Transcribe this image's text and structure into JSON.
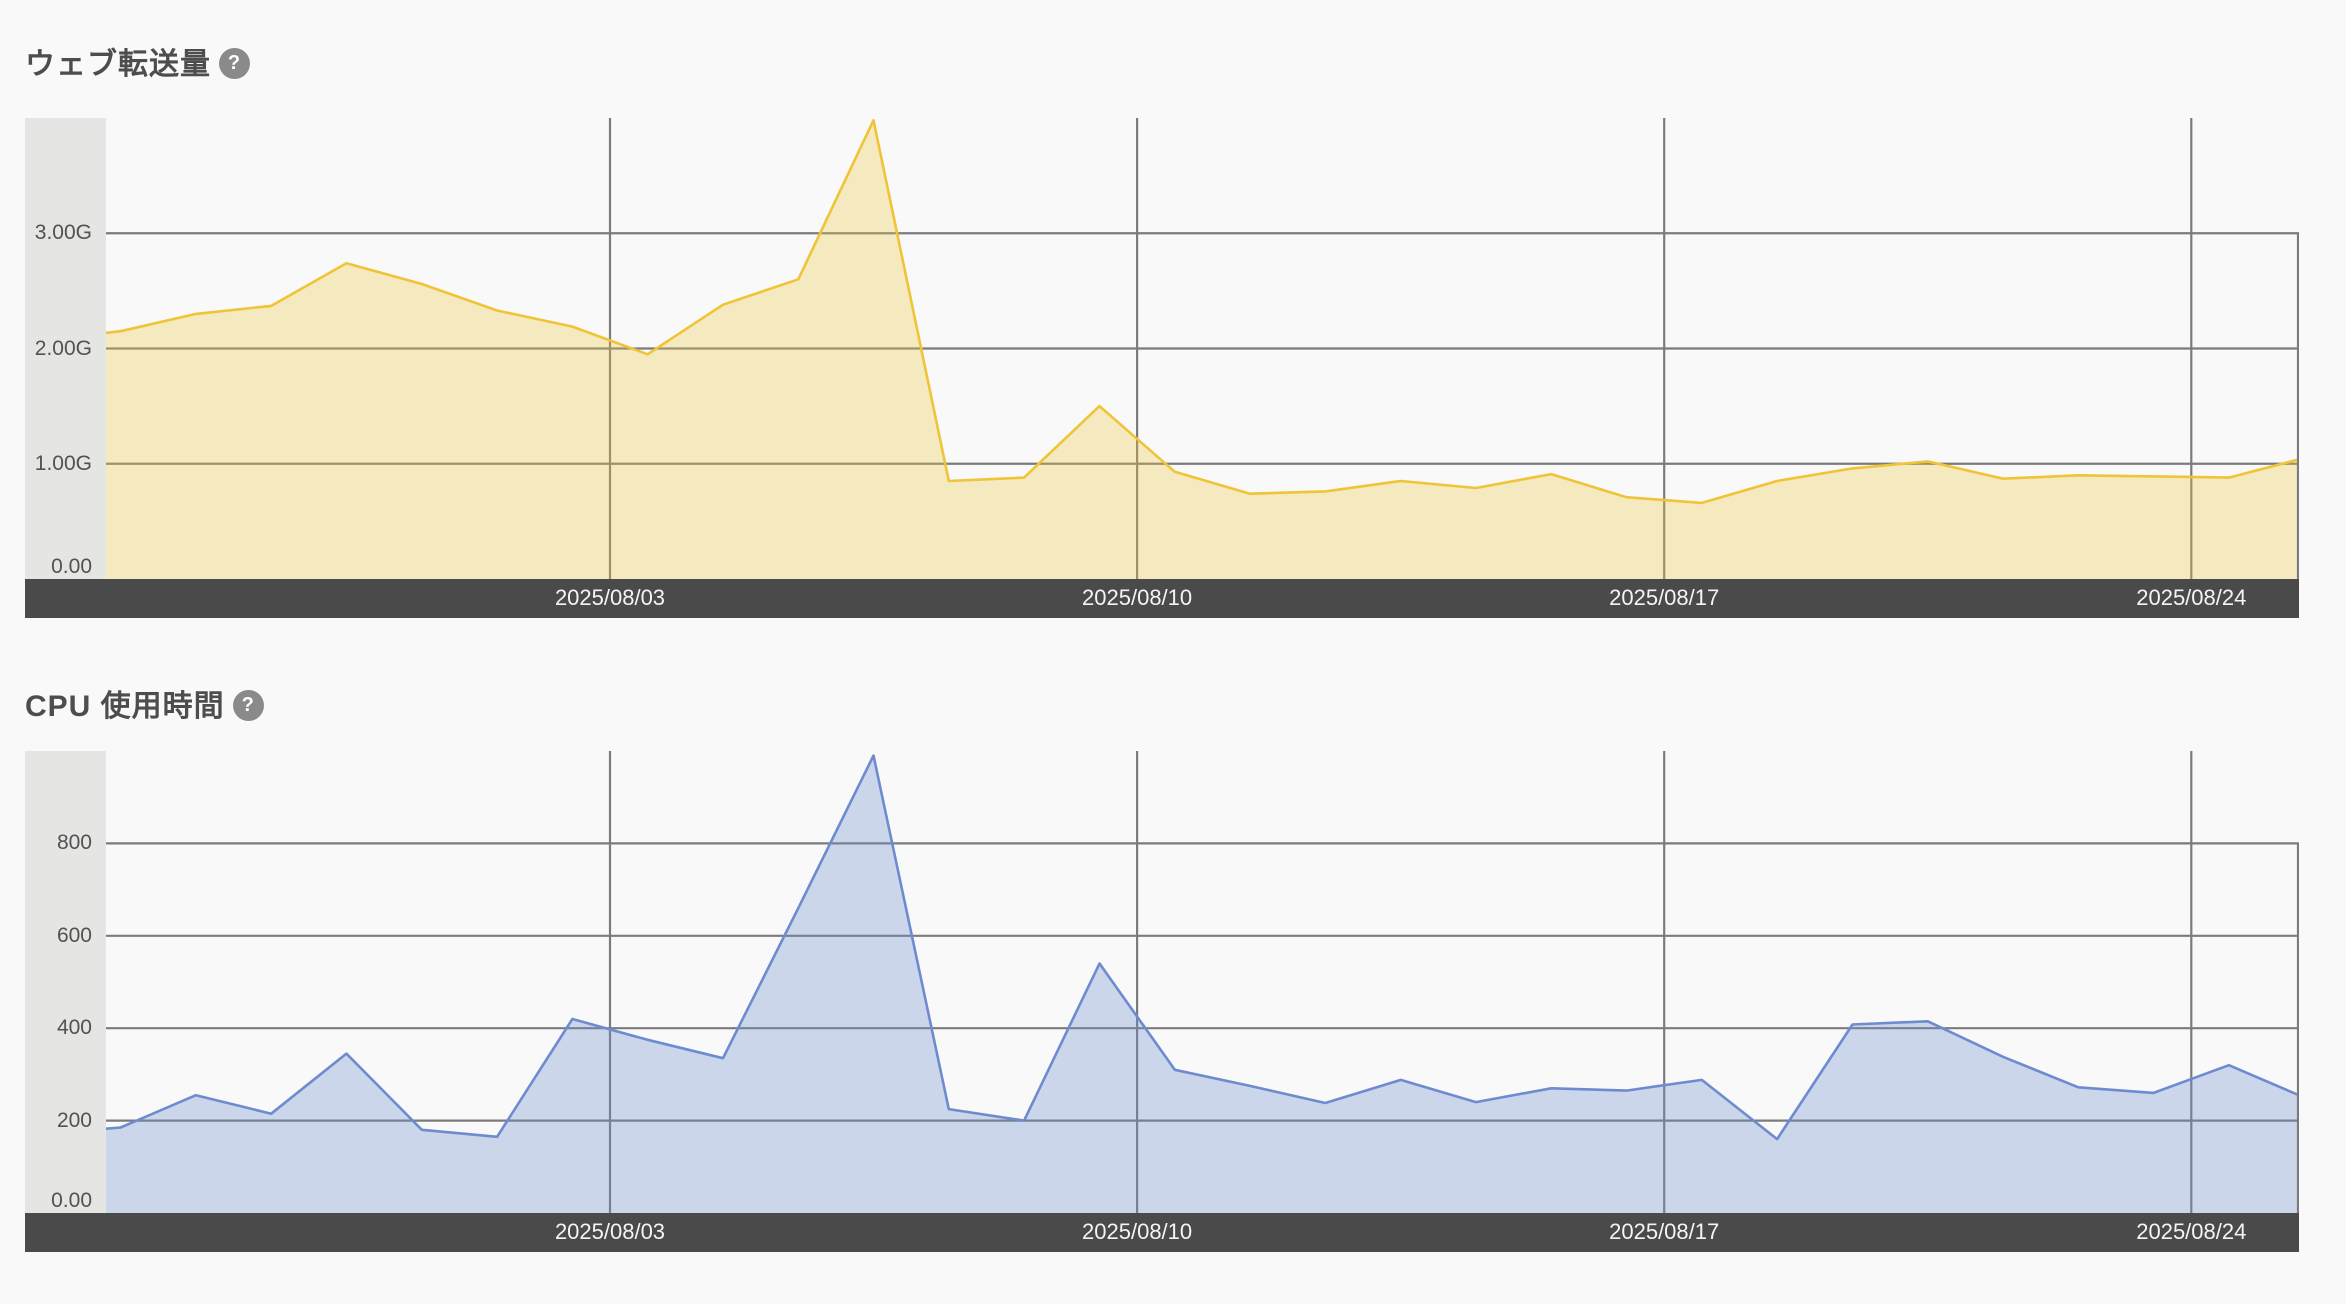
{
  "page": {
    "background": "#f8f9f8",
    "help_glyph": "?",
    "axis_band_color": "#e5e5e4",
    "x_band_color": "#4a4a4a",
    "grid_color": "#7b7b7b"
  },
  "chart_data": [
    {
      "type": "area",
      "title": "ウェブ転送量",
      "help_icon": "question-mark-icon",
      "grid": "on",
      "legend": "none",
      "ylim": [
        0,
        4.0
      ],
      "y_unit": "G",
      "y_tick_labels": [
        "3.00G",
        "2.00G",
        "1.00G",
        "0.00"
      ],
      "y_tick_values": [
        3,
        2,
        1,
        0
      ],
      "x_tick_labels": [
        "2025/08/03",
        "2025/08/10",
        "2025/08/17",
        "2025/08/24"
      ],
      "x_tick_indices": [
        8,
        15,
        22,
        29
      ],
      "line_color": "#efc437",
      "fill_color": "rgba(238,196,60,0.30)",
      "x": [
        "2025/07/26",
        "2025/07/27",
        "2025/07/28",
        "2025/07/29",
        "2025/07/30",
        "2025/07/31",
        "2025/08/01",
        "2025/08/02",
        "2025/08/03",
        "2025/08/04",
        "2025/08/05",
        "2025/08/06",
        "2025/08/07",
        "2025/08/08",
        "2025/08/09",
        "2025/08/10",
        "2025/08/11",
        "2025/08/12",
        "2025/08/13",
        "2025/08/14",
        "2025/08/15",
        "2025/08/16",
        "2025/08/17",
        "2025/08/18",
        "2025/08/19",
        "2025/08/20",
        "2025/08/21",
        "2025/08/22",
        "2025/08/23",
        "2025/08/24",
        "2025/08/25"
      ],
      "values": [
        2.08,
        2.15,
        2.3,
        2.37,
        2.74,
        2.56,
        2.33,
        2.19,
        1.95,
        2.38,
        2.6,
        3.98,
        0.85,
        0.88,
        1.5,
        0.93,
        0.74,
        0.76,
        0.85,
        0.79,
        0.91,
        0.71,
        0.66,
        0.85,
        0.96,
        1.02,
        0.87,
        0.9,
        0.89,
        0.88,
        1.05
      ]
    },
    {
      "type": "area",
      "title": "CPU 使用時間",
      "help_icon": "question-mark-icon",
      "grid": "on",
      "legend": "none",
      "ylim": [
        0,
        1000
      ],
      "y_unit": "",
      "y_tick_labels": [
        "800",
        "600",
        "400",
        "200",
        "0.00"
      ],
      "y_tick_values": [
        800,
        600,
        400,
        200,
        0
      ],
      "x_tick_labels": [
        "2025/08/03",
        "2025/08/10",
        "2025/08/17",
        "2025/08/24"
      ],
      "x_tick_indices": [
        8,
        15,
        22,
        29
      ],
      "line_color": "#6e8bd0",
      "fill_color": "rgba(110,139,208,0.32)",
      "x": [
        "2025/07/26",
        "2025/07/27",
        "2025/07/28",
        "2025/07/29",
        "2025/07/30",
        "2025/07/31",
        "2025/08/01",
        "2025/08/02",
        "2025/08/03",
        "2025/08/04",
        "2025/08/05",
        "2025/08/06",
        "2025/08/07",
        "2025/08/08",
        "2025/08/09",
        "2025/08/10",
        "2025/08/11",
        "2025/08/12",
        "2025/08/13",
        "2025/08/14",
        "2025/08/15",
        "2025/08/16",
        "2025/08/17",
        "2025/08/18",
        "2025/08/19",
        "2025/08/20",
        "2025/08/21",
        "2025/08/22",
        "2025/08/23",
        "2025/08/24",
        "2025/08/25"
      ],
      "values": [
        172,
        185,
        255,
        215,
        345,
        180,
        165,
        420,
        375,
        335,
        660,
        990,
        225,
        200,
        540,
        310,
        275,
        238,
        288,
        240,
        270,
        265,
        288,
        160,
        408,
        415,
        338,
        272,
        260,
        320,
        250
      ]
    }
  ]
}
